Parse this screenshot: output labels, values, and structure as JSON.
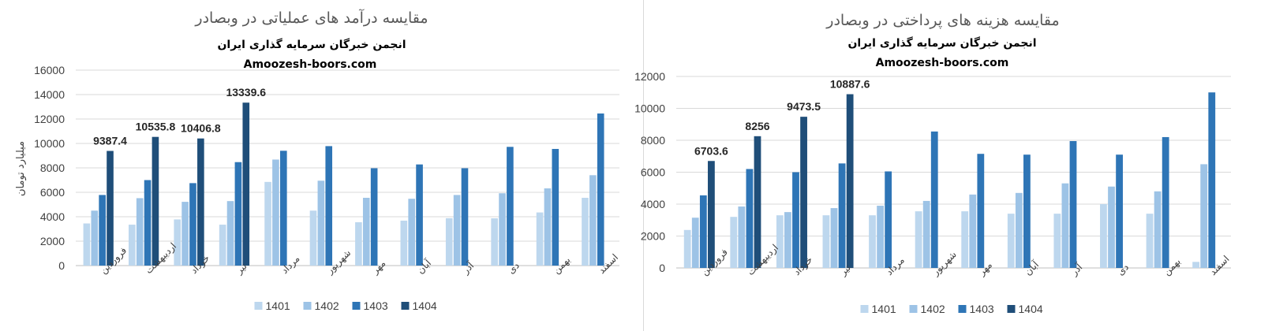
{
  "chart_data": [
    {
      "type": "bar",
      "title": "مقایسه درآمد های عملیاتی در وبصادر",
      "subtitle": "انجمن خبرگان سرمایه گذاری ایران",
      "source": "Amoozesh-boors.com",
      "ylabel": "میلیارد تومان",
      "xlabel": "",
      "ylim": [
        0,
        16000
      ],
      "yticks": [
        0,
        2000,
        4000,
        6000,
        8000,
        10000,
        12000,
        14000,
        16000
      ],
      "grid": true,
      "legend": "bottom",
      "categories": [
        "فروردین",
        "اردیبهشت",
        "خرداد",
        "تیر",
        "مرداد",
        "شهریور",
        "مهر",
        "آبان",
        "آذر",
        "دی",
        "بهمن",
        "اسفند"
      ],
      "series": [
        {
          "name": "1401",
          "color": "#bdd7ee",
          "values": [
            3450,
            3350,
            3780,
            3350,
            6850,
            4500,
            3550,
            3680,
            3880,
            3870,
            4350,
            5550
          ]
        },
        {
          "name": "1402",
          "color": "#9dc3e6",
          "values": [
            4500,
            5520,
            5220,
            5280,
            8680,
            6950,
            5550,
            5470,
            5780,
            5920,
            6320,
            7400
          ]
        },
        {
          "name": "1403",
          "color": "#2e75b6",
          "values": [
            5780,
            7000,
            6750,
            8470,
            9400,
            9780,
            7970,
            8280,
            7970,
            9720,
            9550,
            12450
          ]
        },
        {
          "name": "1404",
          "color": "#1f4e79",
          "values": [
            9387.4,
            10535.8,
            10406.8,
            13339.6,
            null,
            null,
            null,
            null,
            null,
            null,
            null,
            null
          ]
        }
      ],
      "data_labels": {
        "series": "1404",
        "labels": [
          "9387.4",
          "10535.8",
          "10406.8",
          "13339.6"
        ]
      }
    },
    {
      "type": "bar",
      "title": "مقایسه هزینه های پرداختی در وبصادر",
      "subtitle": "انجمن خبرگان سرمایه گذاری ایران",
      "source": "Amoozesh-boors.com",
      "ylabel": "",
      "xlabel": "",
      "ylim": [
        0,
        12000
      ],
      "yticks": [
        0,
        2000,
        4000,
        6000,
        8000,
        10000,
        12000
      ],
      "grid": true,
      "legend": "bottom",
      "categories": [
        "فروردین",
        "اردیبهشت",
        "خرداد",
        "تیر",
        "مرداد",
        "شهریور",
        "مهر",
        "آبان",
        "آذر",
        "دی",
        "بهمن",
        "اسفند"
      ],
      "series": [
        {
          "name": "1401",
          "color": "#bdd7ee",
          "values": [
            2380,
            3200,
            3300,
            3300,
            3300,
            3550,
            3550,
            3400,
            3400,
            4000,
            3400,
            380
          ]
        },
        {
          "name": "1402",
          "color": "#9dc3e6",
          "values": [
            3150,
            3850,
            3500,
            3750,
            3900,
            4200,
            4600,
            4700,
            5300,
            5100,
            4800,
            6500
          ]
        },
        {
          "name": "1403",
          "color": "#2e75b6",
          "values": [
            4550,
            6200,
            6000,
            6550,
            6050,
            8550,
            7150,
            7100,
            7950,
            7100,
            8200,
            11000
          ]
        },
        {
          "name": "1404",
          "color": "#1f4e79",
          "values": [
            6703.6,
            8256,
            9473.5,
            10887.6,
            null,
            null,
            null,
            null,
            null,
            null,
            null,
            null
          ]
        }
      ],
      "data_labels": {
        "series": "1404",
        "labels": [
          "6703.6",
          "8256",
          "9473.5",
          "10887.6"
        ]
      }
    }
  ]
}
